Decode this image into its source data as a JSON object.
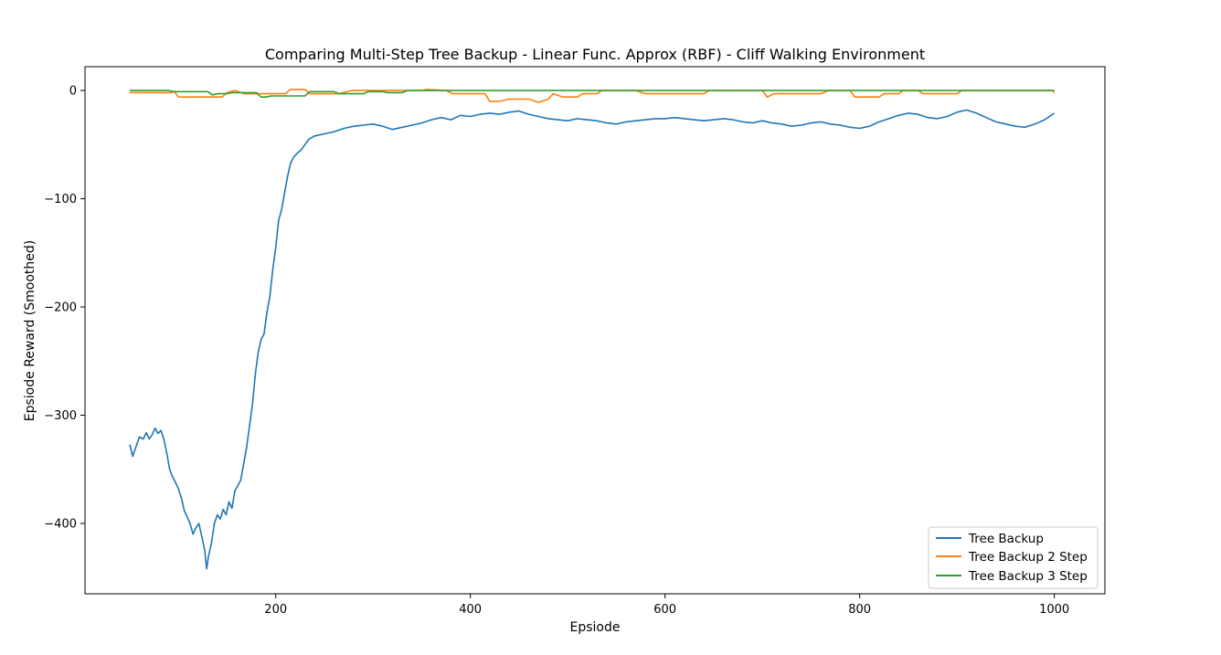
{
  "chart_data": {
    "type": "line",
    "title": "Comparing Multi-Step Tree Backup - Linear Func. Approx (RBF) - Cliff Walking Environment",
    "xlabel": "Epsiode",
    "ylabel": "Epsiode Reward (Smoothed)",
    "xlim": [
      4,
      1052
    ],
    "ylim": [
      -465,
      22
    ],
    "xticks": [
      200,
      400,
      600,
      800,
      1000
    ],
    "yticks": [
      0,
      -100,
      -200,
      -300,
      -400
    ],
    "xtick_labels": [
      "200",
      "400",
      "600",
      "800",
      "1000"
    ],
    "ytick_labels": [
      "0",
      "−100",
      "−200",
      "−300",
      "−400"
    ],
    "grid": false,
    "legend_position": "lower-right",
    "series": [
      {
        "name": "Tree Backup",
        "color": "#1f77b4",
        "points": [
          [
            50,
            -327
          ],
          [
            53,
            -338
          ],
          [
            56,
            -330
          ],
          [
            60,
            -320
          ],
          [
            64,
            -322
          ],
          [
            67,
            -316
          ],
          [
            70,
            -322
          ],
          [
            73,
            -318
          ],
          [
            76,
            -312
          ],
          [
            79,
            -317
          ],
          [
            82,
            -314
          ],
          [
            85,
            -322
          ],
          [
            88,
            -335
          ],
          [
            91,
            -350
          ],
          [
            94,
            -357
          ],
          [
            97,
            -362
          ],
          [
            100,
            -368
          ],
          [
            103,
            -376
          ],
          [
            106,
            -388
          ],
          [
            109,
            -394
          ],
          [
            112,
            -400
          ],
          [
            115,
            -410
          ],
          [
            118,
            -404
          ],
          [
            121,
            -400
          ],
          [
            124,
            -412
          ],
          [
            127,
            -425
          ],
          [
            129,
            -442
          ],
          [
            131,
            -430
          ],
          [
            134,
            -418
          ],
          [
            137,
            -400
          ],
          [
            140,
            -392
          ],
          [
            143,
            -396
          ],
          [
            146,
            -387
          ],
          [
            149,
            -392
          ],
          [
            152,
            -380
          ],
          [
            155,
            -386
          ],
          [
            158,
            -370
          ],
          [
            161,
            -365
          ],
          [
            164,
            -360
          ],
          [
            167,
            -345
          ],
          [
            170,
            -330
          ],
          [
            173,
            -310
          ],
          [
            176,
            -290
          ],
          [
            179,
            -262
          ],
          [
            182,
            -242
          ],
          [
            185,
            -230
          ],
          [
            188,
            -225
          ],
          [
            191,
            -205
          ],
          [
            194,
            -190
          ],
          [
            197,
            -165
          ],
          [
            200,
            -145
          ],
          [
            203,
            -120
          ],
          [
            206,
            -110
          ],
          [
            209,
            -95
          ],
          [
            212,
            -80
          ],
          [
            215,
            -68
          ],
          [
            218,
            -62
          ],
          [
            222,
            -58
          ],
          [
            226,
            -55
          ],
          [
            230,
            -50
          ],
          [
            234,
            -45
          ],
          [
            240,
            -42
          ],
          [
            250,
            -40
          ],
          [
            260,
            -38
          ],
          [
            270,
            -35
          ],
          [
            280,
            -33
          ],
          [
            290,
            -32
          ],
          [
            300,
            -31
          ],
          [
            310,
            -33
          ],
          [
            320,
            -36
          ],
          [
            330,
            -34
          ],
          [
            340,
            -32
          ],
          [
            350,
            -30
          ],
          [
            360,
            -27
          ],
          [
            370,
            -25
          ],
          [
            380,
            -27
          ],
          [
            390,
            -23
          ],
          [
            400,
            -24
          ],
          [
            410,
            -22
          ],
          [
            420,
            -21
          ],
          [
            430,
            -22
          ],
          [
            440,
            -20
          ],
          [
            450,
            -19
          ],
          [
            460,
            -22
          ],
          [
            470,
            -24
          ],
          [
            480,
            -26
          ],
          [
            490,
            -27
          ],
          [
            500,
            -28
          ],
          [
            510,
            -26
          ],
          [
            520,
            -27
          ],
          [
            530,
            -28
          ],
          [
            540,
            -30
          ],
          [
            550,
            -31
          ],
          [
            560,
            -29
          ],
          [
            570,
            -28
          ],
          [
            580,
            -27
          ],
          [
            590,
            -26
          ],
          [
            600,
            -26
          ],
          [
            610,
            -25
          ],
          [
            620,
            -26
          ],
          [
            630,
            -27
          ],
          [
            640,
            -28
          ],
          [
            650,
            -27
          ],
          [
            660,
            -26
          ],
          [
            670,
            -27
          ],
          [
            680,
            -29
          ],
          [
            690,
            -30
          ],
          [
            700,
            -28
          ],
          [
            710,
            -30
          ],
          [
            720,
            -31
          ],
          [
            730,
            -33
          ],
          [
            740,
            -32
          ],
          [
            750,
            -30
          ],
          [
            760,
            -29
          ],
          [
            770,
            -31
          ],
          [
            780,
            -32
          ],
          [
            790,
            -34
          ],
          [
            800,
            -35
          ],
          [
            810,
            -33
          ],
          [
            820,
            -29
          ],
          [
            830,
            -26
          ],
          [
            840,
            -23
          ],
          [
            850,
            -21
          ],
          [
            860,
            -22
          ],
          [
            870,
            -25
          ],
          [
            880,
            -26
          ],
          [
            890,
            -24
          ],
          [
            900,
            -20
          ],
          [
            910,
            -18
          ],
          [
            920,
            -21
          ],
          [
            930,
            -25
          ],
          [
            940,
            -29
          ],
          [
            950,
            -31
          ],
          [
            960,
            -33
          ],
          [
            970,
            -34
          ],
          [
            980,
            -31
          ],
          [
            990,
            -27
          ],
          [
            1000,
            -21
          ]
        ]
      },
      {
        "name": "Tree Backup 2 Step",
        "color": "#ff7f0e",
        "points": [
          [
            50,
            -2
          ],
          [
            92,
            -2
          ],
          [
            96,
            -1
          ],
          [
            100,
            -6
          ],
          [
            145,
            -6
          ],
          [
            150,
            -2
          ],
          [
            158,
            0
          ],
          [
            168,
            -3
          ],
          [
            210,
            -3
          ],
          [
            215,
            1
          ],
          [
            230,
            1
          ],
          [
            235,
            -3
          ],
          [
            265,
            -3
          ],
          [
            278,
            0
          ],
          [
            350,
            0
          ],
          [
            355,
            1
          ],
          [
            375,
            0
          ],
          [
            382,
            -3
          ],
          [
            415,
            -3
          ],
          [
            420,
            -10
          ],
          [
            430,
            -10
          ],
          [
            440,
            -8
          ],
          [
            460,
            -8
          ],
          [
            470,
            -11
          ],
          [
            480,
            -8
          ],
          [
            485,
            -3
          ],
          [
            495,
            -6
          ],
          [
            510,
            -6
          ],
          [
            515,
            -3
          ],
          [
            530,
            -3
          ],
          [
            535,
            0
          ],
          [
            570,
            0
          ],
          [
            580,
            -3
          ],
          [
            640,
            -3
          ],
          [
            645,
            0
          ],
          [
            700,
            0
          ],
          [
            705,
            -6
          ],
          [
            712,
            -3
          ],
          [
            760,
            -3
          ],
          [
            768,
            0
          ],
          [
            790,
            0
          ],
          [
            795,
            -6
          ],
          [
            820,
            -6
          ],
          [
            825,
            -3
          ],
          [
            840,
            -3
          ],
          [
            845,
            0
          ],
          [
            860,
            0
          ],
          [
            865,
            -3
          ],
          [
            900,
            -3
          ],
          [
            905,
            0
          ],
          [
            998,
            0
          ],
          [
            1000,
            -2
          ]
        ]
      },
      {
        "name": "Tree Backup 3 Step",
        "color": "#2ca02c",
        "points": [
          [
            50,
            0
          ],
          [
            90,
            0
          ],
          [
            95,
            -1
          ],
          [
            130,
            -1
          ],
          [
            135,
            -4
          ],
          [
            140,
            -3
          ],
          [
            150,
            -3
          ],
          [
            155,
            -2
          ],
          [
            180,
            -2
          ],
          [
            185,
            -6
          ],
          [
            190,
            -6
          ],
          [
            195,
            -5
          ],
          [
            230,
            -5
          ],
          [
            235,
            -1
          ],
          [
            260,
            -1
          ],
          [
            265,
            -3
          ],
          [
            290,
            -3
          ],
          [
            295,
            -1
          ],
          [
            310,
            -1
          ],
          [
            315,
            -2
          ],
          [
            330,
            -2
          ],
          [
            335,
            0
          ],
          [
            1000,
            0
          ]
        ]
      }
    ]
  }
}
